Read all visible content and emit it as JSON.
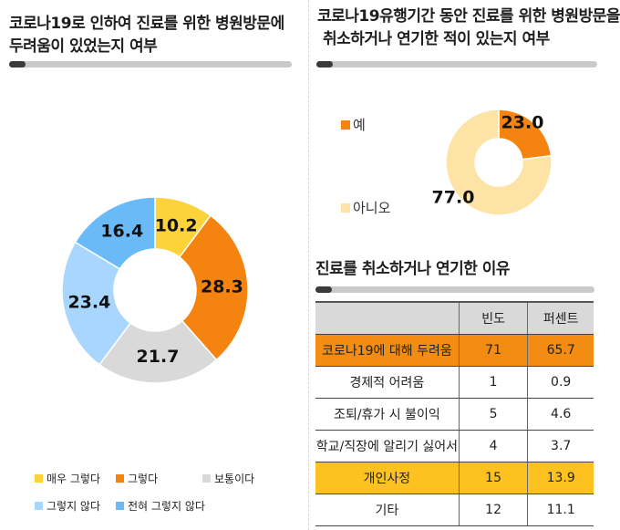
{
  "left": {
    "title_line1": "코로나19로 인하여 진료를 위한 병원방문에",
    "title_line2": "두려움이 있었는지 여부"
  },
  "right": {
    "title_line1": "코로나19유행기간 동안 진료를 위한 병원방문을",
    "title_line2": "취소하거나 연기한 적이 있는지 여부",
    "table_title": "진료를 취소하거나 연기한 이유"
  },
  "colors": {
    "yellow": "#fdd33b",
    "orange": "#f5830f",
    "gray": "#d9d9d9",
    "light_blue": "#a8d6ff",
    "blue": "#69baf7",
    "pale_yellow": "#fde4a6",
    "table_orange": "#f28c12",
    "table_yellow": "#fdc21f"
  },
  "chart_data": [
    {
      "type": "pie",
      "donut": true,
      "categories": [
        "매우 그렇다",
        "그렇다",
        "보통이다",
        "그렇지 않다",
        "전혀 그렇지 않다"
      ],
      "values": [
        10.2,
        28.3,
        21.7,
        23.4,
        16.4
      ],
      "colors": [
        "#fdd33b",
        "#f5830f",
        "#d9d9d9",
        "#a8d6ff",
        "#69baf7"
      ],
      "legend_position": "bottom"
    },
    {
      "type": "pie",
      "donut": true,
      "categories": [
        "예",
        "아니오"
      ],
      "values": [
        23.0,
        77.0
      ],
      "colors": [
        "#f5830f",
        "#fde4a6"
      ],
      "legend_position": "left"
    },
    {
      "type": "table",
      "columns": [
        "",
        "빈도",
        "퍼센트"
      ],
      "rows": [
        [
          "코로나19에 대해 두려움",
          "71",
          "65.7"
        ],
        [
          "경제적 어려움",
          "1",
          "0.9"
        ],
        [
          "조퇴/휴가 시 불이익",
          "5",
          "4.6"
        ],
        [
          "학교/직장에 알리기 싫어서",
          "4",
          "3.7"
        ],
        [
          "개인사정",
          "15",
          "13.9"
        ],
        [
          "기타",
          "12",
          "11.1"
        ]
      ],
      "highlight": [
        "orange",
        "",
        "",
        "",
        "yellow",
        ""
      ]
    }
  ]
}
